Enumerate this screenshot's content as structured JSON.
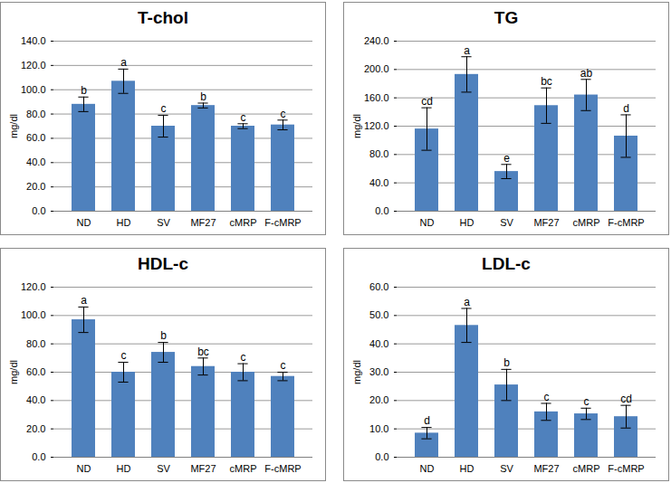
{
  "chart_data": [
    {
      "type": "bar",
      "title": "T-chol",
      "y_label": "mg/dl",
      "categories": [
        "ND",
        "HD",
        "SV",
        "MF27",
        "cMRP",
        "F-cMRP"
      ],
      "values": [
        88,
        107,
        70,
        87,
        70,
        71
      ],
      "errors": [
        6,
        10,
        9,
        2,
        2,
        4
      ],
      "letters": [
        "b",
        "a",
        "c",
        "b",
        "c",
        "c"
      ],
      "color": "#4f81bd",
      "grid": true,
      "ylim": [
        0,
        140
      ],
      "yticks": [
        {
          "value": 0,
          "label": "0.0"
        },
        {
          "value": 20,
          "label": "20.0"
        },
        {
          "value": 40,
          "label": "40.0"
        },
        {
          "value": 60,
          "label": "60.0"
        },
        {
          "value": 80,
          "label": "80.0"
        },
        {
          "value": 100,
          "label": "100.0"
        },
        {
          "value": 120,
          "label": "120.0"
        },
        {
          "value": 140,
          "label": "140.0"
        }
      ]
    },
    {
      "type": "bar",
      "title": "TG",
      "y_label": "mg/dl",
      "categories": [
        "ND",
        "HD",
        "SV",
        "MF27",
        "cMRP",
        "F-cMRP"
      ],
      "values": [
        116,
        193,
        56,
        149,
        164,
        106
      ],
      "errors": [
        30,
        25,
        10,
        25,
        22,
        30
      ],
      "letters": [
        "cd",
        "a",
        "e",
        "bc",
        "ab",
        "d"
      ],
      "color": "#4f81bd",
      "grid": true,
      "ylim": [
        0,
        240
      ],
      "yticks": [
        {
          "value": 0,
          "label": "0.0"
        },
        {
          "value": 40,
          "label": "40.0"
        },
        {
          "value": 80,
          "label": "80.0"
        },
        {
          "value": 120,
          "label": "120.0"
        },
        {
          "value": 160,
          "label": "160.0"
        },
        {
          "value": 200,
          "label": "200.0"
        },
        {
          "value": 240,
          "label": "240.0"
        }
      ]
    },
    {
      "type": "bar",
      "title": "HDL-c",
      "y_label": "mg/dl",
      "categories": [
        "ND",
        "HD",
        "SV",
        "MF27",
        "cMRP",
        "F-cMRP"
      ],
      "values": [
        97,
        60,
        74,
        64,
        60,
        57
      ],
      "errors": [
        9,
        7,
        7,
        6,
        6,
        3
      ],
      "letters": [
        "a",
        "c",
        "b",
        "bc",
        "c",
        "c"
      ],
      "color": "#4f81bd",
      "grid": true,
      "ylim": [
        0,
        120
      ],
      "yticks": [
        {
          "value": 0,
          "label": "0.0"
        },
        {
          "value": 20,
          "label": "20.0"
        },
        {
          "value": 40,
          "label": "40.0"
        },
        {
          "value": 60,
          "label": "60.0"
        },
        {
          "value": 80,
          "label": "80.0"
        },
        {
          "value": 100,
          "label": "100.0"
        },
        {
          "value": 120,
          "label": "120.0"
        }
      ]
    },
    {
      "type": "bar",
      "title": "LDL-c",
      "y_label": "mg/dl",
      "categories": [
        "ND",
        "HD",
        "SV",
        "MF27",
        "cMRP",
        "F-cMRP"
      ],
      "values": [
        8.5,
        46.5,
        25.5,
        16,
        15.3,
        14.3
      ],
      "errors": [
        2,
        6,
        5.5,
        3,
        2,
        4
      ],
      "letters": [
        "d",
        "a",
        "b",
        "c",
        "c",
        "cd"
      ],
      "color": "#4f81bd",
      "grid": true,
      "ylim": [
        0,
        60
      ],
      "yticks": [
        {
          "value": 0,
          "label": "0.0"
        },
        {
          "value": 10,
          "label": "10.0"
        },
        {
          "value": 20,
          "label": "20.0"
        },
        {
          "value": 30,
          "label": "30.0"
        },
        {
          "value": 40,
          "label": "40.0"
        },
        {
          "value": 50,
          "label": "50.0"
        },
        {
          "value": 60,
          "label": "60.0"
        }
      ]
    }
  ]
}
